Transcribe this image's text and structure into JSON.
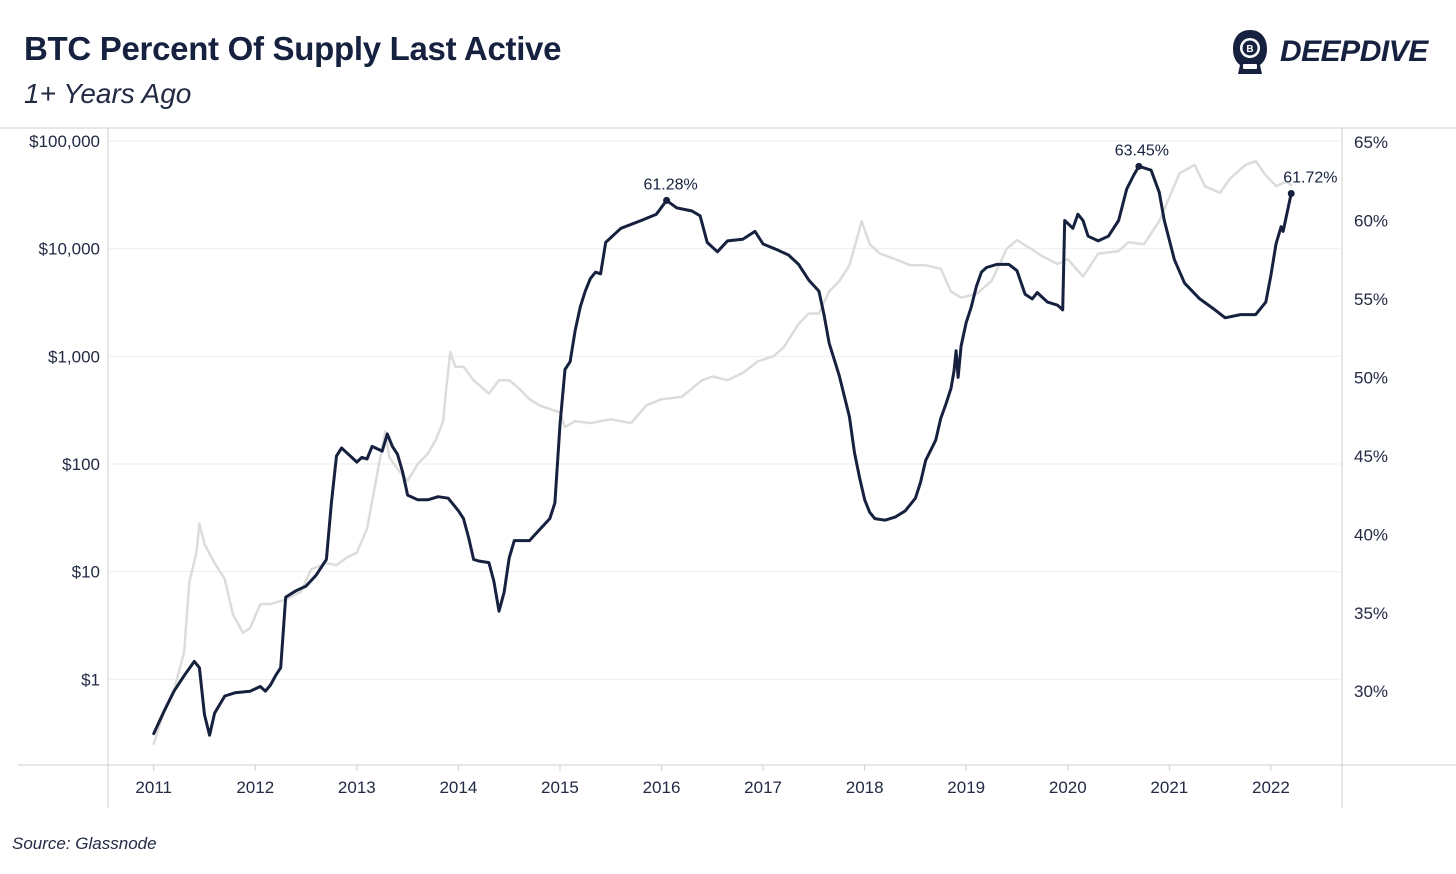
{
  "header": {
    "title": "BTC Percent Of Supply Last Active",
    "subtitle": "1+ Years Ago",
    "brand": "DEEPDIVE"
  },
  "footer": {
    "source": "Source: Glassnode"
  },
  "colors": {
    "supply_line": "#16213f",
    "price_line": "#dcdcdc",
    "grid": "#eeeeee",
    "axis": "#cfcfcf"
  },
  "icons": {
    "logo": "diver-helmet-icon"
  },
  "chart_data": {
    "type": "line",
    "x_ticks": [
      "2011",
      "2012",
      "2013",
      "2014",
      "2015",
      "2016",
      "2017",
      "2018",
      "2019",
      "2020",
      "2021",
      "2022"
    ],
    "xlim": [
      2010.55,
      2022.7
    ],
    "y_left": {
      "scale": "log",
      "ticks": [
        "$1",
        "$10",
        "$100",
        "$1,000",
        "$10,000",
        "$100,000"
      ],
      "tick_values": [
        1,
        10,
        100,
        1000,
        10000,
        100000
      ],
      "ylim": [
        0.16,
        100000
      ]
    },
    "y_right": {
      "ticks": [
        "30%",
        "35%",
        "40%",
        "45%",
        "50%",
        "55%",
        "60%",
        "65%"
      ],
      "tick_values": [
        30,
        35,
        40,
        45,
        50,
        55,
        60,
        65
      ],
      "ylim": [
        25.3,
        65
      ]
    },
    "series": [
      {
        "axis": "right",
        "points": [
          [
            2011.0,
            27.3
          ],
          [
            2011.1,
            28.7
          ],
          [
            2011.2,
            30.0
          ],
          [
            2011.3,
            31.0
          ],
          [
            2011.4,
            31.9
          ],
          [
            2011.45,
            31.5
          ],
          [
            2011.5,
            28.5
          ],
          [
            2011.55,
            27.2
          ],
          [
            2011.6,
            28.6
          ],
          [
            2011.7,
            29.7
          ],
          [
            2011.8,
            29.9
          ],
          [
            2011.95,
            30.0
          ],
          [
            2012.05,
            30.3
          ],
          [
            2012.1,
            30.0
          ],
          [
            2012.15,
            30.4
          ],
          [
            2012.2,
            31.0
          ],
          [
            2012.25,
            31.5
          ],
          [
            2012.3,
            36.0
          ],
          [
            2012.4,
            36.4
          ],
          [
            2012.5,
            36.7
          ],
          [
            2012.6,
            37.4
          ],
          [
            2012.7,
            38.4
          ],
          [
            2012.75,
            42.0
          ],
          [
            2012.8,
            45.0
          ],
          [
            2012.85,
            45.5
          ],
          [
            2012.9,
            45.2
          ],
          [
            2012.95,
            44.9
          ],
          [
            2013.0,
            44.6
          ],
          [
            2013.05,
            44.9
          ],
          [
            2013.1,
            44.8
          ],
          [
            2013.15,
            45.6
          ],
          [
            2013.25,
            45.3
          ],
          [
            2013.3,
            46.4
          ],
          [
            2013.35,
            45.6
          ],
          [
            2013.4,
            45.1
          ],
          [
            2013.45,
            44.0
          ],
          [
            2013.5,
            42.5
          ],
          [
            2013.6,
            42.2
          ],
          [
            2013.7,
            42.2
          ],
          [
            2013.8,
            42.4
          ],
          [
            2013.9,
            42.3
          ],
          [
            2014.0,
            41.5
          ],
          [
            2014.05,
            41.0
          ],
          [
            2014.1,
            39.8
          ],
          [
            2014.15,
            38.4
          ],
          [
            2014.2,
            38.3
          ],
          [
            2014.3,
            38.2
          ],
          [
            2014.35,
            37.0
          ],
          [
            2014.4,
            35.1
          ],
          [
            2014.45,
            36.3
          ],
          [
            2014.5,
            38.5
          ],
          [
            2014.55,
            39.6
          ],
          [
            2014.7,
            39.6
          ],
          [
            2014.8,
            40.3
          ],
          [
            2014.9,
            41.0
          ],
          [
            2014.95,
            42.0
          ],
          [
            2015.0,
            47.0
          ],
          [
            2015.05,
            50.5
          ],
          [
            2015.1,
            51.0
          ],
          [
            2015.15,
            53.0
          ],
          [
            2015.2,
            54.5
          ],
          [
            2015.25,
            55.5
          ],
          [
            2015.3,
            56.3
          ],
          [
            2015.35,
            56.7
          ],
          [
            2015.4,
            56.6
          ],
          [
            2015.45,
            58.6
          ],
          [
            2015.6,
            59.5
          ],
          [
            2015.8,
            60.0
          ],
          [
            2015.95,
            60.4
          ],
          [
            2016.05,
            61.28
          ],
          [
            2016.15,
            60.8
          ],
          [
            2016.3,
            60.6
          ],
          [
            2016.38,
            60.3
          ],
          [
            2016.45,
            58.6
          ],
          [
            2016.55,
            58.0
          ],
          [
            2016.65,
            58.7
          ],
          [
            2016.8,
            58.8
          ],
          [
            2016.92,
            59.3
          ],
          [
            2017.0,
            58.5
          ],
          [
            2017.15,
            58.1
          ],
          [
            2017.25,
            57.8
          ],
          [
            2017.35,
            57.2
          ],
          [
            2017.45,
            56.2
          ],
          [
            2017.55,
            55.5
          ],
          [
            2017.6,
            54.0
          ],
          [
            2017.65,
            52.2
          ],
          [
            2017.75,
            50.1
          ],
          [
            2017.85,
            47.5
          ],
          [
            2017.9,
            45.2
          ],
          [
            2017.95,
            43.6
          ],
          [
            2018.0,
            42.2
          ],
          [
            2018.05,
            41.4
          ],
          [
            2018.1,
            41.0
          ],
          [
            2018.2,
            40.9
          ],
          [
            2018.3,
            41.1
          ],
          [
            2018.4,
            41.5
          ],
          [
            2018.5,
            42.3
          ],
          [
            2018.55,
            43.3
          ],
          [
            2018.6,
            44.7
          ],
          [
            2018.7,
            46.0
          ],
          [
            2018.75,
            47.4
          ],
          [
            2018.8,
            48.3
          ],
          [
            2018.85,
            49.3
          ],
          [
            2018.88,
            50.4
          ],
          [
            2018.9,
            51.7
          ],
          [
            2018.92,
            50.0
          ],
          [
            2018.95,
            52.0
          ],
          [
            2019.0,
            53.5
          ],
          [
            2019.05,
            54.5
          ],
          [
            2019.1,
            55.8
          ],
          [
            2019.15,
            56.7
          ],
          [
            2019.2,
            57.0
          ],
          [
            2019.3,
            57.2
          ],
          [
            2019.42,
            57.2
          ],
          [
            2019.5,
            56.8
          ],
          [
            2019.58,
            55.3
          ],
          [
            2019.65,
            55.0
          ],
          [
            2019.7,
            55.4
          ],
          [
            2019.8,
            54.8
          ],
          [
            2019.9,
            54.6
          ],
          [
            2019.95,
            54.3
          ],
          [
            2019.97,
            60.0
          ],
          [
            2020.05,
            59.5
          ],
          [
            2020.1,
            60.4
          ],
          [
            2020.15,
            60.0
          ],
          [
            2020.2,
            59.0
          ],
          [
            2020.3,
            58.7
          ],
          [
            2020.4,
            59.0
          ],
          [
            2020.5,
            60.0
          ],
          [
            2020.58,
            62.0
          ],
          [
            2020.65,
            62.9
          ],
          [
            2020.7,
            63.45
          ],
          [
            2020.82,
            63.2
          ],
          [
            2020.9,
            61.8
          ],
          [
            2020.95,
            60.0
          ],
          [
            2021.05,
            57.5
          ],
          [
            2021.15,
            56.0
          ],
          [
            2021.3,
            55.0
          ],
          [
            2021.45,
            54.3
          ],
          [
            2021.55,
            53.8
          ],
          [
            2021.7,
            54.0
          ],
          [
            2021.85,
            54.0
          ],
          [
            2021.95,
            54.8
          ],
          [
            2022.0,
            56.5
          ],
          [
            2022.05,
            58.5
          ],
          [
            2022.1,
            59.6
          ],
          [
            2022.12,
            59.3
          ],
          [
            2022.2,
            61.72
          ]
        ]
      },
      {
        "axis": "left",
        "points": [
          [
            2011.0,
            0.25
          ],
          [
            2011.1,
            0.5
          ],
          [
            2011.2,
            0.8
          ],
          [
            2011.3,
            1.8
          ],
          [
            2011.35,
            8.0
          ],
          [
            2011.42,
            15.0
          ],
          [
            2011.45,
            28.0
          ],
          [
            2011.5,
            18.0
          ],
          [
            2011.6,
            12.0
          ],
          [
            2011.7,
            8.5
          ],
          [
            2011.78,
            4.0
          ],
          [
            2011.88,
            2.7
          ],
          [
            2011.95,
            3.0
          ],
          [
            2012.05,
            5.0
          ],
          [
            2012.15,
            5.0
          ],
          [
            2012.3,
            5.5
          ],
          [
            2012.45,
            6.5
          ],
          [
            2012.55,
            10.5
          ],
          [
            2012.7,
            12.0
          ],
          [
            2012.8,
            11.5
          ],
          [
            2012.9,
            13.5
          ],
          [
            2013.0,
            15.0
          ],
          [
            2013.1,
            25.0
          ],
          [
            2013.2,
            80.0
          ],
          [
            2013.28,
            200.0
          ],
          [
            2013.32,
            115.0
          ],
          [
            2013.4,
            90.0
          ],
          [
            2013.5,
            70.0
          ],
          [
            2013.6,
            100.0
          ],
          [
            2013.7,
            125.0
          ],
          [
            2013.78,
            170.0
          ],
          [
            2013.85,
            250.0
          ],
          [
            2013.88,
            500.0
          ],
          [
            2013.92,
            1100.0
          ],
          [
            2013.97,
            800.0
          ],
          [
            2014.05,
            800.0
          ],
          [
            2014.15,
            600.0
          ],
          [
            2014.3,
            450.0
          ],
          [
            2014.4,
            600.0
          ],
          [
            2014.5,
            600.0
          ],
          [
            2014.6,
            500.0
          ],
          [
            2014.7,
            400.0
          ],
          [
            2014.8,
            350.0
          ],
          [
            2015.0,
            300.0
          ],
          [
            2015.05,
            220.0
          ],
          [
            2015.15,
            250.0
          ],
          [
            2015.3,
            240.0
          ],
          [
            2015.5,
            260.0
          ],
          [
            2015.7,
            240.0
          ],
          [
            2015.85,
            350.0
          ],
          [
            2016.0,
            400.0
          ],
          [
            2016.2,
            420.0
          ],
          [
            2016.4,
            600.0
          ],
          [
            2016.5,
            650.0
          ],
          [
            2016.65,
            600.0
          ],
          [
            2016.8,
            700.0
          ],
          [
            2016.95,
            900.0
          ],
          [
            2017.1,
            1000.0
          ],
          [
            2017.2,
            1200.0
          ],
          [
            2017.35,
            2000.0
          ],
          [
            2017.45,
            2500.0
          ],
          [
            2017.55,
            2500.0
          ],
          [
            2017.65,
            4000.0
          ],
          [
            2017.75,
            5000.0
          ],
          [
            2017.85,
            7000.0
          ],
          [
            2017.92,
            12000.0
          ],
          [
            2017.97,
            18000.0
          ],
          [
            2018.05,
            11000.0
          ],
          [
            2018.15,
            9000.0
          ],
          [
            2018.3,
            8000.0
          ],
          [
            2018.45,
            7000.0
          ],
          [
            2018.6,
            7000.0
          ],
          [
            2018.75,
            6500.0
          ],
          [
            2018.85,
            4000.0
          ],
          [
            2018.95,
            3500.0
          ],
          [
            2019.1,
            3800.0
          ],
          [
            2019.25,
            5000.0
          ],
          [
            2019.4,
            10000.0
          ],
          [
            2019.5,
            12000.0
          ],
          [
            2019.6,
            10500.0
          ],
          [
            2019.75,
            8500.0
          ],
          [
            2019.9,
            7200.0
          ],
          [
            2020.0,
            8000.0
          ],
          [
            2020.15,
            5500.0
          ],
          [
            2020.3,
            9000.0
          ],
          [
            2020.5,
            9500.0
          ],
          [
            2020.6,
            11500.0
          ],
          [
            2020.75,
            11000.0
          ],
          [
            2020.9,
            18000.0
          ],
          [
            2021.0,
            30000.0
          ],
          [
            2021.1,
            50000.0
          ],
          [
            2021.25,
            60000.0
          ],
          [
            2021.35,
            38000.0
          ],
          [
            2021.5,
            33000.0
          ],
          [
            2021.6,
            45000.0
          ],
          [
            2021.75,
            60000.0
          ],
          [
            2021.85,
            65000.0
          ],
          [
            2021.95,
            48000.0
          ],
          [
            2022.05,
            38000.0
          ],
          [
            2022.15,
            42000.0
          ],
          [
            2022.2,
            39000.0
          ]
        ]
      }
    ],
    "annotations": [
      {
        "text": "61.28%",
        "x": 2016.05,
        "y": 61.28
      },
      {
        "text": "63.45%",
        "x": 2020.7,
        "y": 63.45
      },
      {
        "text": "61.72%",
        "x": 2022.2,
        "y": 61.72
      }
    ],
    "grid": true
  }
}
